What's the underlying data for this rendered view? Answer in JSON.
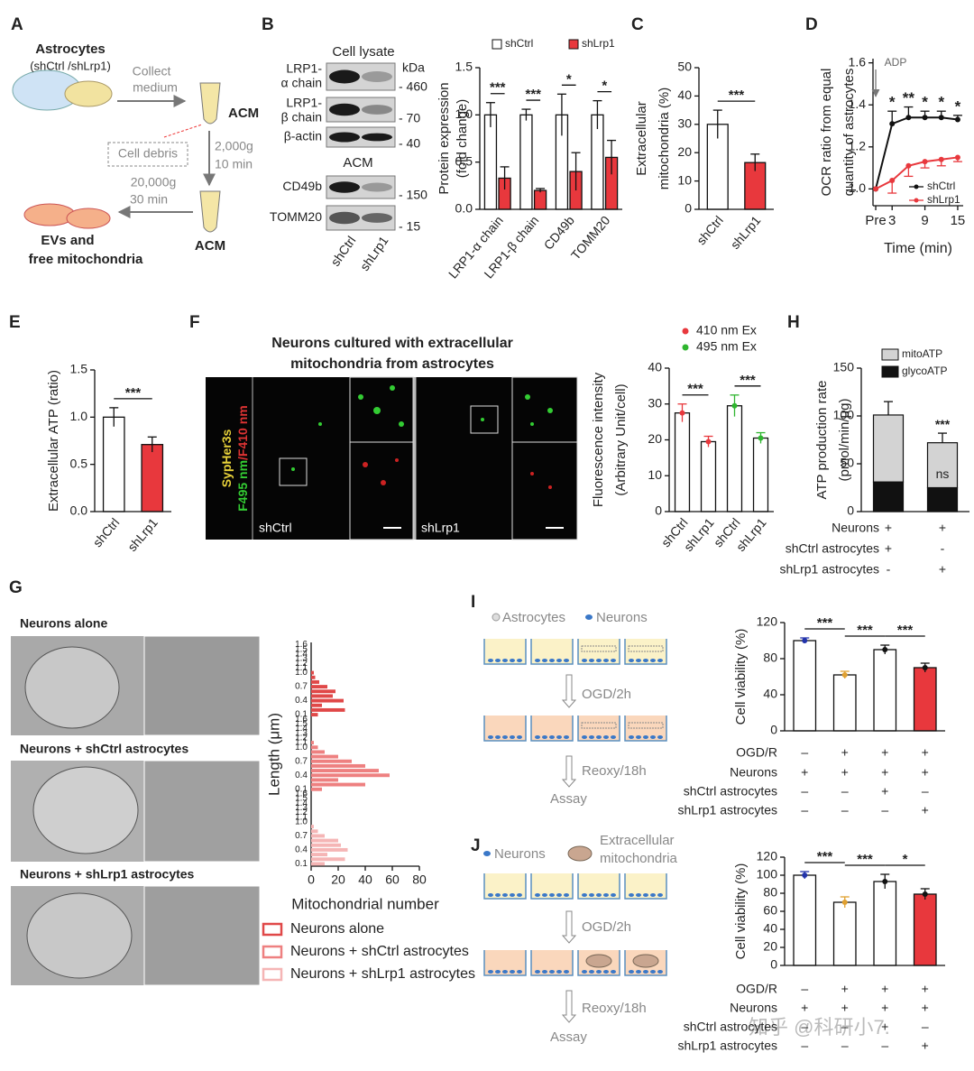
{
  "panel_letters": [
    "A",
    "B",
    "C",
    "D",
    "E",
    "F",
    "G",
    "H",
    "I",
    "J"
  ],
  "panel_a": {
    "title": "Astrocytes",
    "subtitle": "(shCtrl /shLrp1)",
    "step1": [
      "Collect",
      "medium"
    ],
    "tube1": "ACM",
    "spin1": [
      "2,000g",
      "10 min"
    ],
    "pellet": "Cell debris",
    "spin2": [
      "20,000g",
      "30 min"
    ],
    "product": [
      "EVs and",
      "free mitochondria"
    ],
    "tube2": "ACM"
  },
  "panel_b_blot": {
    "lysate": "Cell lysate",
    "kda": "kDa",
    "acm": "ACM",
    "rows": [
      {
        "label": [
          "LRP1-",
          "α chain"
        ],
        "marker": "- 460"
      },
      {
        "label": [
          "LRP1-",
          "β chain"
        ],
        "marker": "- 70"
      },
      {
        "label": [
          "β-actin"
        ],
        "marker": "- 40"
      },
      {
        "label": [
          "CD49b"
        ],
        "marker": "- 150"
      },
      {
        "label": [
          "TOMM20"
        ],
        "marker": "- 15"
      }
    ],
    "lanes": [
      "shCtrl",
      "shLrp1"
    ]
  },
  "panel_f_images": {
    "title": [
      "Neurons cultured with extracellular",
      "mitochondria from astrocytes"
    ],
    "side_label": [
      "SypHer3s",
      "F495 nm",
      "/F410 nm"
    ],
    "panels": [
      "shCtrl",
      "shLrp1"
    ]
  },
  "panel_g_images": {
    "labels": [
      "Neurons alone",
      "Neurons + shCtrl astrocytes",
      "Neurons + shLrp1 astrocytes"
    ]
  },
  "panel_i_scheme": {
    "legend": [
      "Astrocytes",
      "Neurons"
    ],
    "steps": [
      "OGD/2h",
      "Reoxy/18h",
      "Assay"
    ]
  },
  "panel_j_scheme": {
    "legend": [
      "Neurons",
      "Extracellular",
      "mitochondria"
    ],
    "steps": [
      "OGD/2h",
      "Reoxy/18h",
      "Assay"
    ]
  },
  "watermark": "知乎 @科研小7.",
  "chart_data": [
    {
      "type": "bar",
      "ylabel": [
        "Protein expression",
        "(fold change)"
      ],
      "categories": [
        "LRP1-α chain",
        "LRP1-β chain",
        "CD49b",
        "TOMM20"
      ],
      "series": [
        {
          "name": "shCtrl",
          "color": "#ffffff",
          "values": [
            1.0,
            1.0,
            1.0,
            1.0
          ],
          "errors": [
            0.13,
            0.06,
            0.22,
            0.15
          ]
        },
        {
          "name": "shLrp1",
          "color": "#e8383d",
          "values": [
            0.33,
            0.2,
            0.4,
            0.55
          ],
          "errors": [
            0.12,
            0.02,
            0.2,
            0.18
          ]
        }
      ],
      "ylim": [
        0,
        1.5
      ],
      "yticks": [
        {
          "value": 0,
          "label": "0.0"
        },
        {
          "value": 0.5,
          "label": "0.5"
        },
        {
          "value": 1,
          "label": "1.0"
        },
        {
          "value": 1.5,
          "label": "1.5"
        }
      ],
      "significance": [
        "***",
        "***",
        "*",
        "*"
      ]
    },
    {
      "type": "bar",
      "ylabel": [
        "Extracellular",
        "mitochondria (%)"
      ],
      "categories": [
        "shCtrl",
        "shLrp1"
      ],
      "values": [
        30,
        16.5
      ],
      "errors": [
        5,
        3
      ],
      "colors": [
        "#ffffff",
        "#e8383d"
      ],
      "ylim": [
        0,
        50
      ],
      "yticks": [
        0,
        10,
        20,
        30,
        40,
        50
      ],
      "significance": [
        "***"
      ]
    },
    {
      "type": "line",
      "ylabel": [
        "OCR ratio from equal",
        "quantity of astrocytes"
      ],
      "xlabel": "Time (min)",
      "annotation": "ADP",
      "x": [
        0,
        3,
        6,
        9,
        12,
        15
      ],
      "xlim": [
        -0.5,
        16
      ],
      "xticks": [
        {
          "value": 0,
          "label": "Pre"
        },
        3,
        9,
        15
      ],
      "series": [
        {
          "name": "shCtrl",
          "color": "#111111",
          "values": [
            1.0,
            1.31,
            1.34,
            1.34,
            1.34,
            1.33
          ],
          "errors": [
            0,
            0.06,
            0.05,
            0.03,
            0.03,
            0.02
          ]
        },
        {
          "name": "shLrp1",
          "color": "#e8383d",
          "values": [
            1.0,
            1.04,
            1.11,
            1.13,
            1.14,
            1.15
          ],
          "errors": [
            0,
            0.06,
            0.05,
            0.03,
            0.03,
            0.02
          ]
        }
      ],
      "ylim": [
        0.92,
        1.62
      ],
      "yticks": [
        {
          "value": 1,
          "label": "1.0"
        },
        {
          "value": 1.2,
          "label": "1.2"
        },
        {
          "value": 1.4,
          "label": "1.4"
        },
        {
          "value": 1.6,
          "label": "1.6"
        }
      ],
      "significance": [
        "*",
        "**",
        "*",
        "*",
        "*"
      ]
    },
    {
      "type": "bar",
      "ylabel": [
        "Extracellular ATP (ratio)"
      ],
      "categories": [
        "shCtrl",
        "shLrp1"
      ],
      "values": [
        1.0,
        0.71
      ],
      "errors": [
        0.1,
        0.08
      ],
      "colors": [
        "#ffffff",
        "#e8383d"
      ],
      "ylim": [
        0,
        1.5
      ],
      "yticks": [
        {
          "value": 0,
          "label": "0.0"
        },
        {
          "value": 0.5,
          "label": "0.5"
        },
        {
          "value": 1,
          "label": "1.0"
        },
        {
          "value": 1.5,
          "label": "1.5"
        }
      ],
      "significance": [
        "***"
      ]
    },
    {
      "type": "bar",
      "ylabel": [
        "Fluorescence intensity",
        "(Arbitrary Unit/cell)"
      ],
      "legend": [
        {
          "name": "410 nm Ex",
          "color": "#e8383d"
        },
        {
          "name": "495 nm Ex",
          "color": "#2fb52f"
        }
      ],
      "categories": [
        "shCtrl",
        "shLrp1",
        "shCtrl",
        "shLrp1"
      ],
      "values": [
        27.5,
        19.5,
        29.5,
        20.5
      ],
      "errors": [
        2.5,
        1.5,
        3,
        1.5
      ],
      "colors": [
        "#ffffff",
        "#ffffff",
        "#ffffff",
        "#ffffff"
      ],
      "point_colors": [
        "#e8383d",
        "#e8383d",
        "#2fb52f",
        "#2fb52f"
      ],
      "ylim": [
        0,
        40
      ],
      "yticks": [
        0,
        10,
        20,
        30,
        40
      ],
      "significance": [
        "***",
        "***"
      ]
    },
    {
      "type": "stacked_bar",
      "ylabel": [
        "ATP production rate",
        "(pmol/min/μg)"
      ],
      "series": [
        {
          "name": "glycoATP",
          "color": "#111111",
          "values": [
            31,
            25
          ],
          "errors": [
            8,
            5
          ]
        },
        {
          "name": "mitoATP",
          "color": "#d3d3d3",
          "values": [
            70,
            47
          ],
          "errors": [
            14,
            10
          ]
        }
      ],
      "ylim": [
        0,
        150
      ],
      "yticks": [
        0,
        50,
        100,
        150
      ],
      "annotations": [
        "***",
        "ns"
      ],
      "conditions": [
        {
          "label": "Neurons",
          "values": [
            "+",
            "+"
          ]
        },
        {
          "label": "shCtrl astrocytes",
          "values": [
            "+",
            "-"
          ]
        },
        {
          "label": "shLrp1 astrocytes",
          "values": [
            "-",
            "+"
          ]
        }
      ]
    },
    {
      "type": "hbar",
      "ylabel": "Length (μm)",
      "xlabel": "Mitochondrial number",
      "categories": [
        0.1,
        null,
        null,
        0.4,
        null,
        null,
        0.7,
        null,
        null,
        {
          "value": 1,
          "label": "1.0"
        },
        1.1,
        1.2,
        1.3,
        1.4,
        1.5,
        1.6
      ],
      "series": [
        {
          "name": "Neurons alone",
          "color": "#e04848",
          "values": [
            5,
            25,
            8,
            24,
            16,
            18,
            12,
            6,
            3,
            2,
            0,
            0,
            0,
            0,
            0,
            0
          ]
        },
        {
          "name": "Neurons + shCtrl astrocytes",
          "color": "#ee8080",
          "values": [
            8,
            40,
            20,
            58,
            50,
            40,
            30,
            20,
            10,
            5,
            2,
            0,
            0,
            0,
            0,
            0
          ]
        },
        {
          "name": "Neurons + shLrp1 astrocytes",
          "color": "#f5b5b5",
          "values": [
            10,
            25,
            12,
            27,
            22,
            20,
            10,
            5,
            2,
            0,
            0,
            0,
            0,
            0,
            0,
            0
          ]
        }
      ],
      "xlim": [
        0,
        80
      ],
      "xticks": [
        0,
        20,
        40,
        60,
        80
      ]
    },
    {
      "type": "bar",
      "ylabel": [
        "Cell viability (%)"
      ],
      "values": [
        100,
        62,
        90,
        70
      ],
      "errors": [
        3,
        4,
        5,
        5
      ],
      "colors": [
        "#ffffff",
        "#ffffff",
        "#ffffff",
        "#e8383d"
      ],
      "point_colors": [
        "#2233aa",
        "#e0a030",
        "#111111",
        "#111111"
      ],
      "ylim": [
        0,
        120
      ],
      "yticks": [
        0,
        40,
        80,
        120
      ],
      "significance": [
        "***",
        "***",
        "***"
      ],
      "conditions": [
        {
          "label": "OGD/R",
          "values": [
            "–",
            "+",
            "+",
            "+"
          ]
        },
        {
          "label": "Neurons",
          "values": [
            "+",
            "+",
            "+",
            "+"
          ]
        },
        {
          "label": "shCtrl astrocytes",
          "values": [
            "–",
            "–",
            "+",
            "–"
          ]
        },
        {
          "label": "shLrp1 astrocytes",
          "values": [
            "–",
            "–",
            "–",
            "+"
          ]
        }
      ]
    },
    {
      "type": "bar",
      "ylabel": [
        "Cell viability (%)"
      ],
      "values": [
        100,
        70,
        93,
        79
      ],
      "errors": [
        4,
        6,
        8,
        6
      ],
      "colors": [
        "#ffffff",
        "#ffffff",
        "#ffffff",
        "#e8383d"
      ],
      "point_colors": [
        "#2233aa",
        "#e0a030",
        "#111111",
        "#111111"
      ],
      "ylim": [
        0,
        120
      ],
      "yticks": [
        0,
        20,
        40,
        60,
        80,
        100,
        120
      ],
      "significance": [
        "***",
        "***",
        "*"
      ],
      "conditions": [
        {
          "label": "OGD/R",
          "values": [
            "–",
            "+",
            "+",
            "+"
          ]
        },
        {
          "label": "Neurons",
          "values": [
            "+",
            "+",
            "+",
            "+"
          ]
        },
        {
          "label": "shCtrl astrocytes",
          "values": [
            "–",
            "–",
            "+",
            "–"
          ]
        },
        {
          "label": "shLrp1 astrocytes",
          "values": [
            "–",
            "–",
            "–",
            "+"
          ]
        }
      ]
    }
  ]
}
